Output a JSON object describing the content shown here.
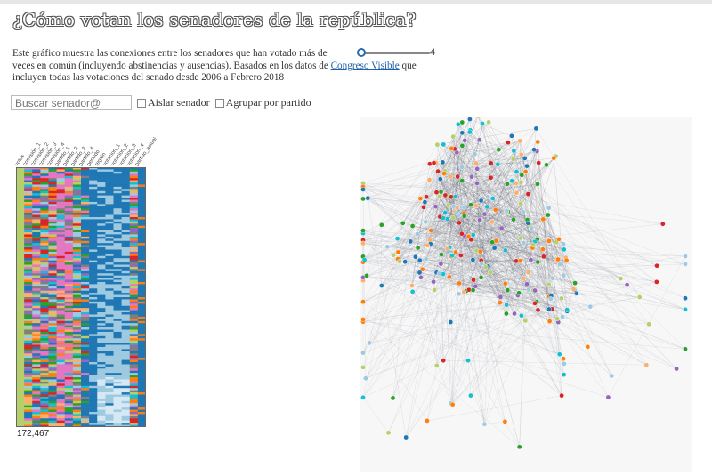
{
  "title": "¿Cómo votan los senadores de la república?",
  "description": {
    "line1": "Este gráfico muestra las conexiones entre los senadores que han votado más de",
    "line2": "veces en común (incluyendo abstinencias y ausencias). Basados en los datos de",
    "link": "Congreso Visible",
    "line2_end": "que",
    "line3": "incluyen todas las votaciones del senado desde 2006 a Febrero 2018"
  },
  "slider": {
    "value": "4",
    "fraction": 0.0
  },
  "search": {
    "placeholder": "Buscar senador@"
  },
  "options": {
    "isolate_label": "Aislar senador",
    "group_label": "Agrupar por partido"
  },
  "heatmap": {
    "columns": [
      "votos",
      "comisión_1",
      "comisión_2",
      "comisión_3",
      "comisión_4",
      "partido_1",
      "partido_2",
      "partido_3",
      "partido_4",
      "período",
      "región",
      "votacion_1",
      "votacion_2",
      "votacion_3",
      "votacion_4",
      "partido_actual"
    ],
    "count": "172,467"
  },
  "colors": {
    "blue": "#1f77b4",
    "light_blue": "#9ecae1",
    "orange": "#ff7f0e",
    "light_orange": "#fdae6b",
    "green": "#2ca02c",
    "red": "#d62728",
    "purple": "#9467bd",
    "pink": "#e377c2",
    "olive": "#b5cf6b",
    "teal": "#17becf",
    "gray": "#7f7f7f",
    "node_edge": "#555555"
  }
}
